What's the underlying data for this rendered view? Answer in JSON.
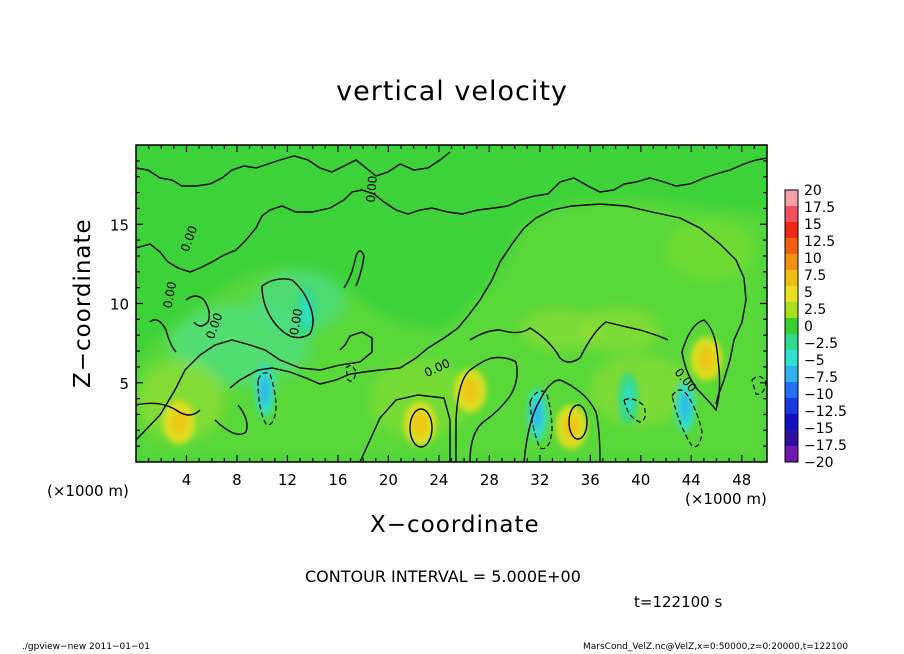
{
  "chart_data": {
    "type": "heatmap",
    "title": "vertical velocity",
    "xlabel": "X−coordinate",
    "ylabel": "Z−coordinate",
    "x_unit": "(×1000 m)",
    "y_unit_label": "(×1000 m)",
    "xlim": [
      0,
      50
    ],
    "ylim": [
      0,
      20
    ],
    "x_ticks": [
      4,
      8,
      12,
      16,
      20,
      24,
      28,
      32,
      36,
      40,
      44,
      48
    ],
    "x_tick_labels": [
      "4",
      "8",
      "12",
      "16",
      "20",
      "24",
      "28",
      "32",
      "36",
      "40",
      "44",
      "48"
    ],
    "y_ticks": [
      5,
      10,
      15
    ],
    "y_tick_labels": [
      "5",
      "10",
      "15"
    ],
    "contour_interval_text": "CONTOUR INTERVAL = 5.000E+00",
    "contour_labels": [
      "0.00",
      "0.00",
      "0.00",
      "0.00",
      "0.00",
      "0.00",
      "0.00"
    ],
    "colorbar": {
      "levels": [
        "20",
        "17.5",
        "15",
        "12.5",
        "10",
        "7.5",
        "5",
        "2.5",
        "0",
        "−2.5",
        "−5",
        "−7.5",
        "−10",
        "−12.5",
        "−15",
        "−17.5",
        "−20"
      ],
      "colors": [
        "#f4a0a8",
        "#f05060",
        "#f02818",
        "#f06010",
        "#f09010",
        "#f0c010",
        "#e8e020",
        "#a8e020",
        "#38d030",
        "#30d890",
        "#30e0d0",
        "#30b0f0",
        "#2070f0",
        "#1838e0",
        "#1010c0",
        "#3010a0",
        "#7018b0"
      ]
    },
    "features": [
      {
        "kind": "updraft",
        "x": 3.4,
        "z": 2.5,
        "value": 5
      },
      {
        "kind": "updraft",
        "x": 22.5,
        "z": 2.4,
        "value": 5
      },
      {
        "kind": "updraft",
        "x": 26.5,
        "z": 4.5,
        "value": 6
      },
      {
        "kind": "updraft",
        "x": 34.5,
        "z": 2.2,
        "value": 4
      },
      {
        "kind": "updraft",
        "x": 45.2,
        "z": 6.5,
        "value": 5
      },
      {
        "kind": "downdraft",
        "x": 10.2,
        "z": 4.5,
        "value": -5
      },
      {
        "kind": "downdraft",
        "x": 31.8,
        "z": 3.0,
        "value": -6
      },
      {
        "kind": "downdraft",
        "x": 43.5,
        "z": 3.5,
        "value": -6
      },
      {
        "kind": "downdraft",
        "x": 39.0,
        "z": 4.0,
        "value": -3
      },
      {
        "kind": "downdraft",
        "x": 13.5,
        "z": 9.5,
        "value": -2
      }
    ]
  },
  "time_text": "t=122100 s",
  "footer": {
    "left": "./gpview−new   2011−01−01",
    "right": "MarsCond_VelZ.nc@VelZ,x=0:50000,z=0:20000,t=122100"
  }
}
